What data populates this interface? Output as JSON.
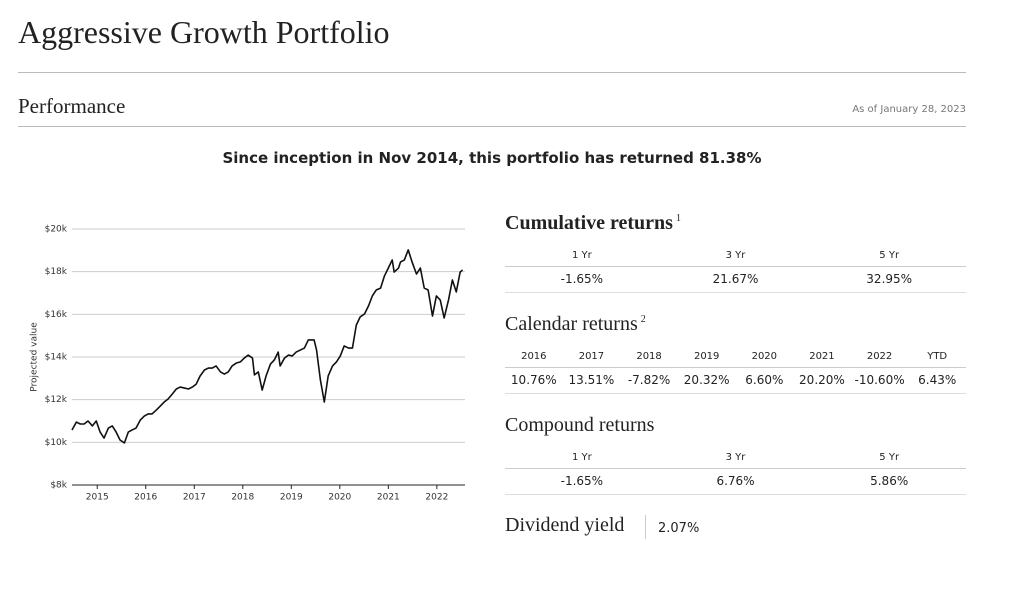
{
  "header": {
    "title": "Aggressive Growth Portfolio"
  },
  "performance": {
    "heading": "Performance",
    "as_of": "As of January 28, 2023",
    "summary": "Since inception in Nov 2014, this portfolio has returned 81.38%"
  },
  "chart_data": {
    "type": "line",
    "y_label": "Projected value",
    "color": "#111111",
    "grid": true,
    "xlim": [
      2014.48,
      2022.58
    ],
    "xticks": [
      2015,
      2016,
      2017,
      2018,
      2019,
      2020,
      2021,
      2022
    ],
    "ylim": [
      8000,
      20000
    ],
    "yticks": [
      {
        "value": 8000,
        "label": "$8k"
      },
      {
        "value": 10000,
        "label": "$10k"
      },
      {
        "value": 12000,
        "label": "$12k"
      },
      {
        "value": 14000,
        "label": "$14k"
      },
      {
        "value": 16000,
        "label": "$16k"
      },
      {
        "value": 18000,
        "label": "$18k"
      },
      {
        "value": 20000,
        "label": "$20k"
      }
    ],
    "x": [
      2014.48,
      2014.57,
      2014.65,
      2014.73,
      2014.81,
      2014.9,
      2014.98,
      2015.06,
      2015.14,
      2015.23,
      2015.31,
      2015.39,
      2015.47,
      2015.56,
      2015.64,
      2015.72,
      2015.8,
      2015.89,
      2015.97,
      2016.05,
      2016.13,
      2016.22,
      2016.3,
      2016.38,
      2016.46,
      2016.55,
      2016.63,
      2016.71,
      2016.79,
      2016.88,
      2016.96,
      2017.04,
      2017.12,
      2017.21,
      2017.29,
      2017.37,
      2017.45,
      2017.54,
      2017.62,
      2017.7,
      2017.78,
      2017.87,
      2017.95,
      2018.03,
      2018.11,
      2018.2,
      2018.24,
      2018.32,
      2018.4,
      2018.48,
      2018.57,
      2018.65,
      2018.73,
      2018.77,
      2018.86,
      2018.94,
      2019.02,
      2019.1,
      2019.19,
      2019.27,
      2019.35,
      2019.47,
      2019.52,
      2019.6,
      2019.68,
      2019.76,
      2019.85,
      2019.93,
      2020.01,
      2020.09,
      2020.18,
      2020.26,
      2020.34,
      2020.42,
      2020.51,
      2020.59,
      2020.67,
      2020.75,
      2020.84,
      2020.92,
      2021.0,
      2021.08,
      2021.12,
      2021.21,
      2021.25,
      2021.33,
      2021.41,
      2021.49,
      2021.58,
      2021.66,
      2021.74,
      2021.82,
      2021.91,
      2021.99,
      2022.07,
      2022.15,
      2022.24,
      2022.32,
      2022.4,
      2022.48,
      2022.53
    ],
    "values": [
      10580,
      10950,
      10860,
      10860,
      11000,
      10770,
      11000,
      10480,
      10200,
      10670,
      10770,
      10480,
      10110,
      9970,
      10480,
      10580,
      10670,
      11050,
      11230,
      11330,
      11330,
      11520,
      11700,
      11890,
      12030,
      12270,
      12500,
      12590,
      12550,
      12500,
      12590,
      12730,
      13110,
      13390,
      13480,
      13480,
      13580,
      13300,
      13200,
      13300,
      13580,
      13720,
      13770,
      13950,
      14090,
      13950,
      13160,
      13300,
      12450,
      13110,
      13670,
      13860,
      14230,
      13580,
      13950,
      14090,
      14050,
      14230,
      14330,
      14420,
      14800,
      14800,
      14330,
      12920,
      11890,
      13110,
      13580,
      13770,
      14050,
      14520,
      14420,
      14420,
      15500,
      15880,
      16020,
      16390,
      16860,
      17140,
      17230,
      17800,
      18170,
      18550,
      17980,
      18170,
      18450,
      18550,
      19020,
      18450,
      17890,
      18170,
      17230,
      17140,
      15920,
      16860,
      16670,
      15830,
      16670,
      17610,
      17050,
      17980,
      18080
    ]
  },
  "cumulative": {
    "title": "Cumulative returns",
    "note": "1",
    "headers": [
      "1 Yr",
      "3 Yr",
      "5 Yr"
    ],
    "values": [
      "-1.65%",
      "21.67%",
      "32.95%"
    ]
  },
  "calendar": {
    "title": "Calendar returns",
    "note": "2",
    "headers": [
      "2016",
      "2017",
      "2018",
      "2019",
      "2020",
      "2021",
      "2022",
      "YTD"
    ],
    "values": [
      "10.76%",
      "13.51%",
      "-7.82%",
      "20.32%",
      "6.60%",
      "20.20%",
      "-10.60%",
      "6.43%"
    ]
  },
  "compound": {
    "title": "Compound returns",
    "headers": [
      "1 Yr",
      "3 Yr",
      "5 Yr"
    ],
    "values": [
      "-1.65%",
      "6.76%",
      "5.86%"
    ]
  },
  "dividend": {
    "label": "Dividend yield",
    "value": "2.07%"
  }
}
